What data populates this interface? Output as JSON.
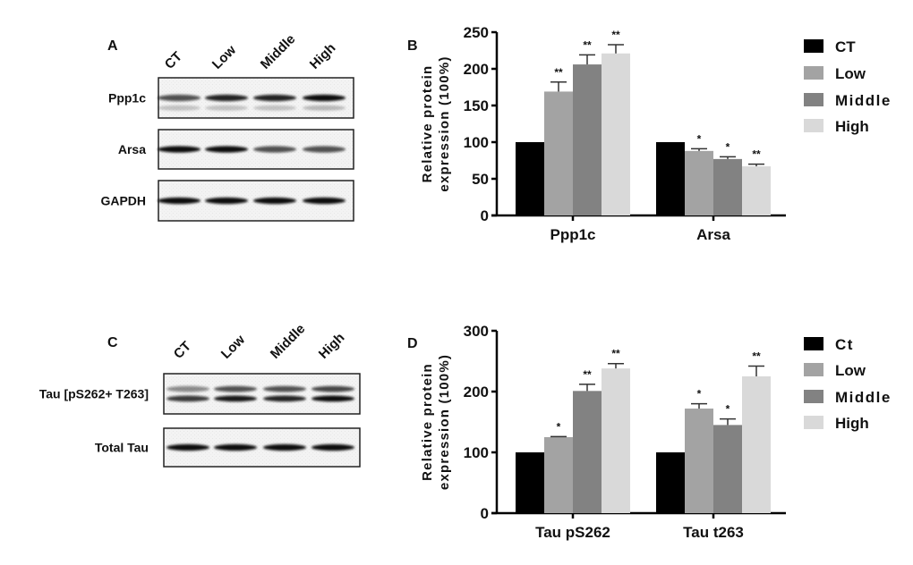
{
  "colors": {
    "CT": "#000000",
    "Low": "#a3a3a3",
    "Middle": "#828282",
    "High": "#d9d9d9"
  },
  "blot_A": {
    "panel_label": "A",
    "lanes": [
      "CT",
      "Low",
      "Middle",
      "High"
    ],
    "rows": [
      {
        "label": "Ppp1c",
        "bands": [
          [
            0.7,
            0.9,
            0.9,
            1.0
          ]
        ],
        "secondary": [
          0.25,
          0.25,
          0.25,
          0.3
        ]
      },
      {
        "label": "Arsa",
        "bands": [
          [
            1.0,
            1.0,
            0.7,
            0.7
          ]
        ]
      },
      {
        "label": "GAPDH",
        "bands": [
          [
            1.0,
            1.0,
            1.0,
            1.0
          ]
        ]
      }
    ]
  },
  "blot_C": {
    "panel_label": "C",
    "lanes": [
      "CT",
      "Low",
      "Middle",
      "High"
    ],
    "rows": [
      {
        "label": "Tau [pS262+ T263]",
        "bands": [
          [
            0.45,
            0.7,
            0.7,
            0.75
          ],
          [
            0.8,
            0.95,
            0.9,
            1.0
          ]
        ]
      },
      {
        "label": "Total Tau",
        "bands": [
          [
            1.0,
            1.0,
            1.0,
            1.0
          ]
        ]
      }
    ]
  },
  "chart_data": [
    {
      "panel_label": "B",
      "type": "bar",
      "ylabel": [
        "Relative protein",
        "expression (100%)"
      ],
      "categories": [
        "Ppp1c",
        "Arsa"
      ],
      "ylim": [
        0,
        250
      ],
      "yticks": [
        0,
        50,
        100,
        150,
        200,
        250
      ],
      "legend": "right",
      "series": [
        {
          "name": "CT",
          "values": [
            100,
            100
          ],
          "errors": [
            0,
            0
          ],
          "sig": [
            "",
            ""
          ]
        },
        {
          "name": "Low",
          "values": [
            169,
            88
          ],
          "errors": [
            13,
            3
          ],
          "sig": [
            "**",
            "*"
          ]
        },
        {
          "name": "Middle",
          "values": [
            206,
            77
          ],
          "errors": [
            13,
            3
          ],
          "sig": [
            "**",
            "*"
          ]
        },
        {
          "name": "High",
          "values": [
            221,
            67
          ],
          "errors": [
            12,
            3
          ],
          "sig": [
            "**",
            "**"
          ]
        }
      ]
    },
    {
      "panel_label": "D",
      "type": "bar",
      "ylabel": [
        "Relative protein",
        "expression (100%)"
      ],
      "categories": [
        "Tau pS262",
        "Tau t263"
      ],
      "ylim": [
        0,
        300
      ],
      "yticks": [
        0,
        100,
        200,
        300
      ],
      "legend": "right",
      "series": [
        {
          "name": "Ct",
          "values": [
            100,
            100
          ],
          "errors": [
            0,
            0
          ],
          "sig": [
            "",
            ""
          ]
        },
        {
          "name": "Low",
          "values": [
            125,
            172
          ],
          "errors": [
            1,
            8
          ],
          "sig": [
            "*",
            "*"
          ]
        },
        {
          "name": "Middle",
          "values": [
            201,
            145
          ],
          "errors": [
            11,
            10
          ],
          "sig": [
            "**",
            "*"
          ]
        },
        {
          "name": "High",
          "values": [
            238,
            225
          ],
          "errors": [
            8,
            17
          ],
          "sig": [
            "**",
            "**"
          ]
        }
      ]
    }
  ]
}
